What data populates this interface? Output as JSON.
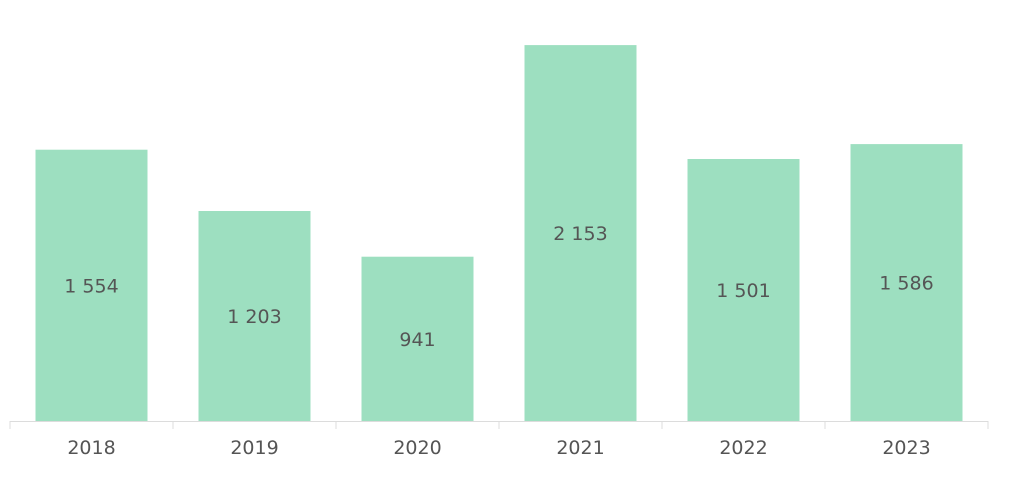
{
  "colors": {
    "bar": "#9ddfc0",
    "axis": "#dcdcdc",
    "text": "#555555"
  },
  "chart_data": {
    "type": "bar",
    "categories": [
      "2018",
      "2019",
      "2020",
      "2021",
      "2022",
      "2023"
    ],
    "values": [
      1554,
      1203,
      941,
      2153,
      1501,
      1586
    ],
    "value_labels": [
      "1 554",
      "1 203",
      "941",
      "2 153",
      "1 501",
      "1 586"
    ],
    "title": "",
    "xlabel": "",
    "ylabel": "",
    "ylim": [
      0,
      2400
    ],
    "grid": false,
    "legend": "none"
  }
}
